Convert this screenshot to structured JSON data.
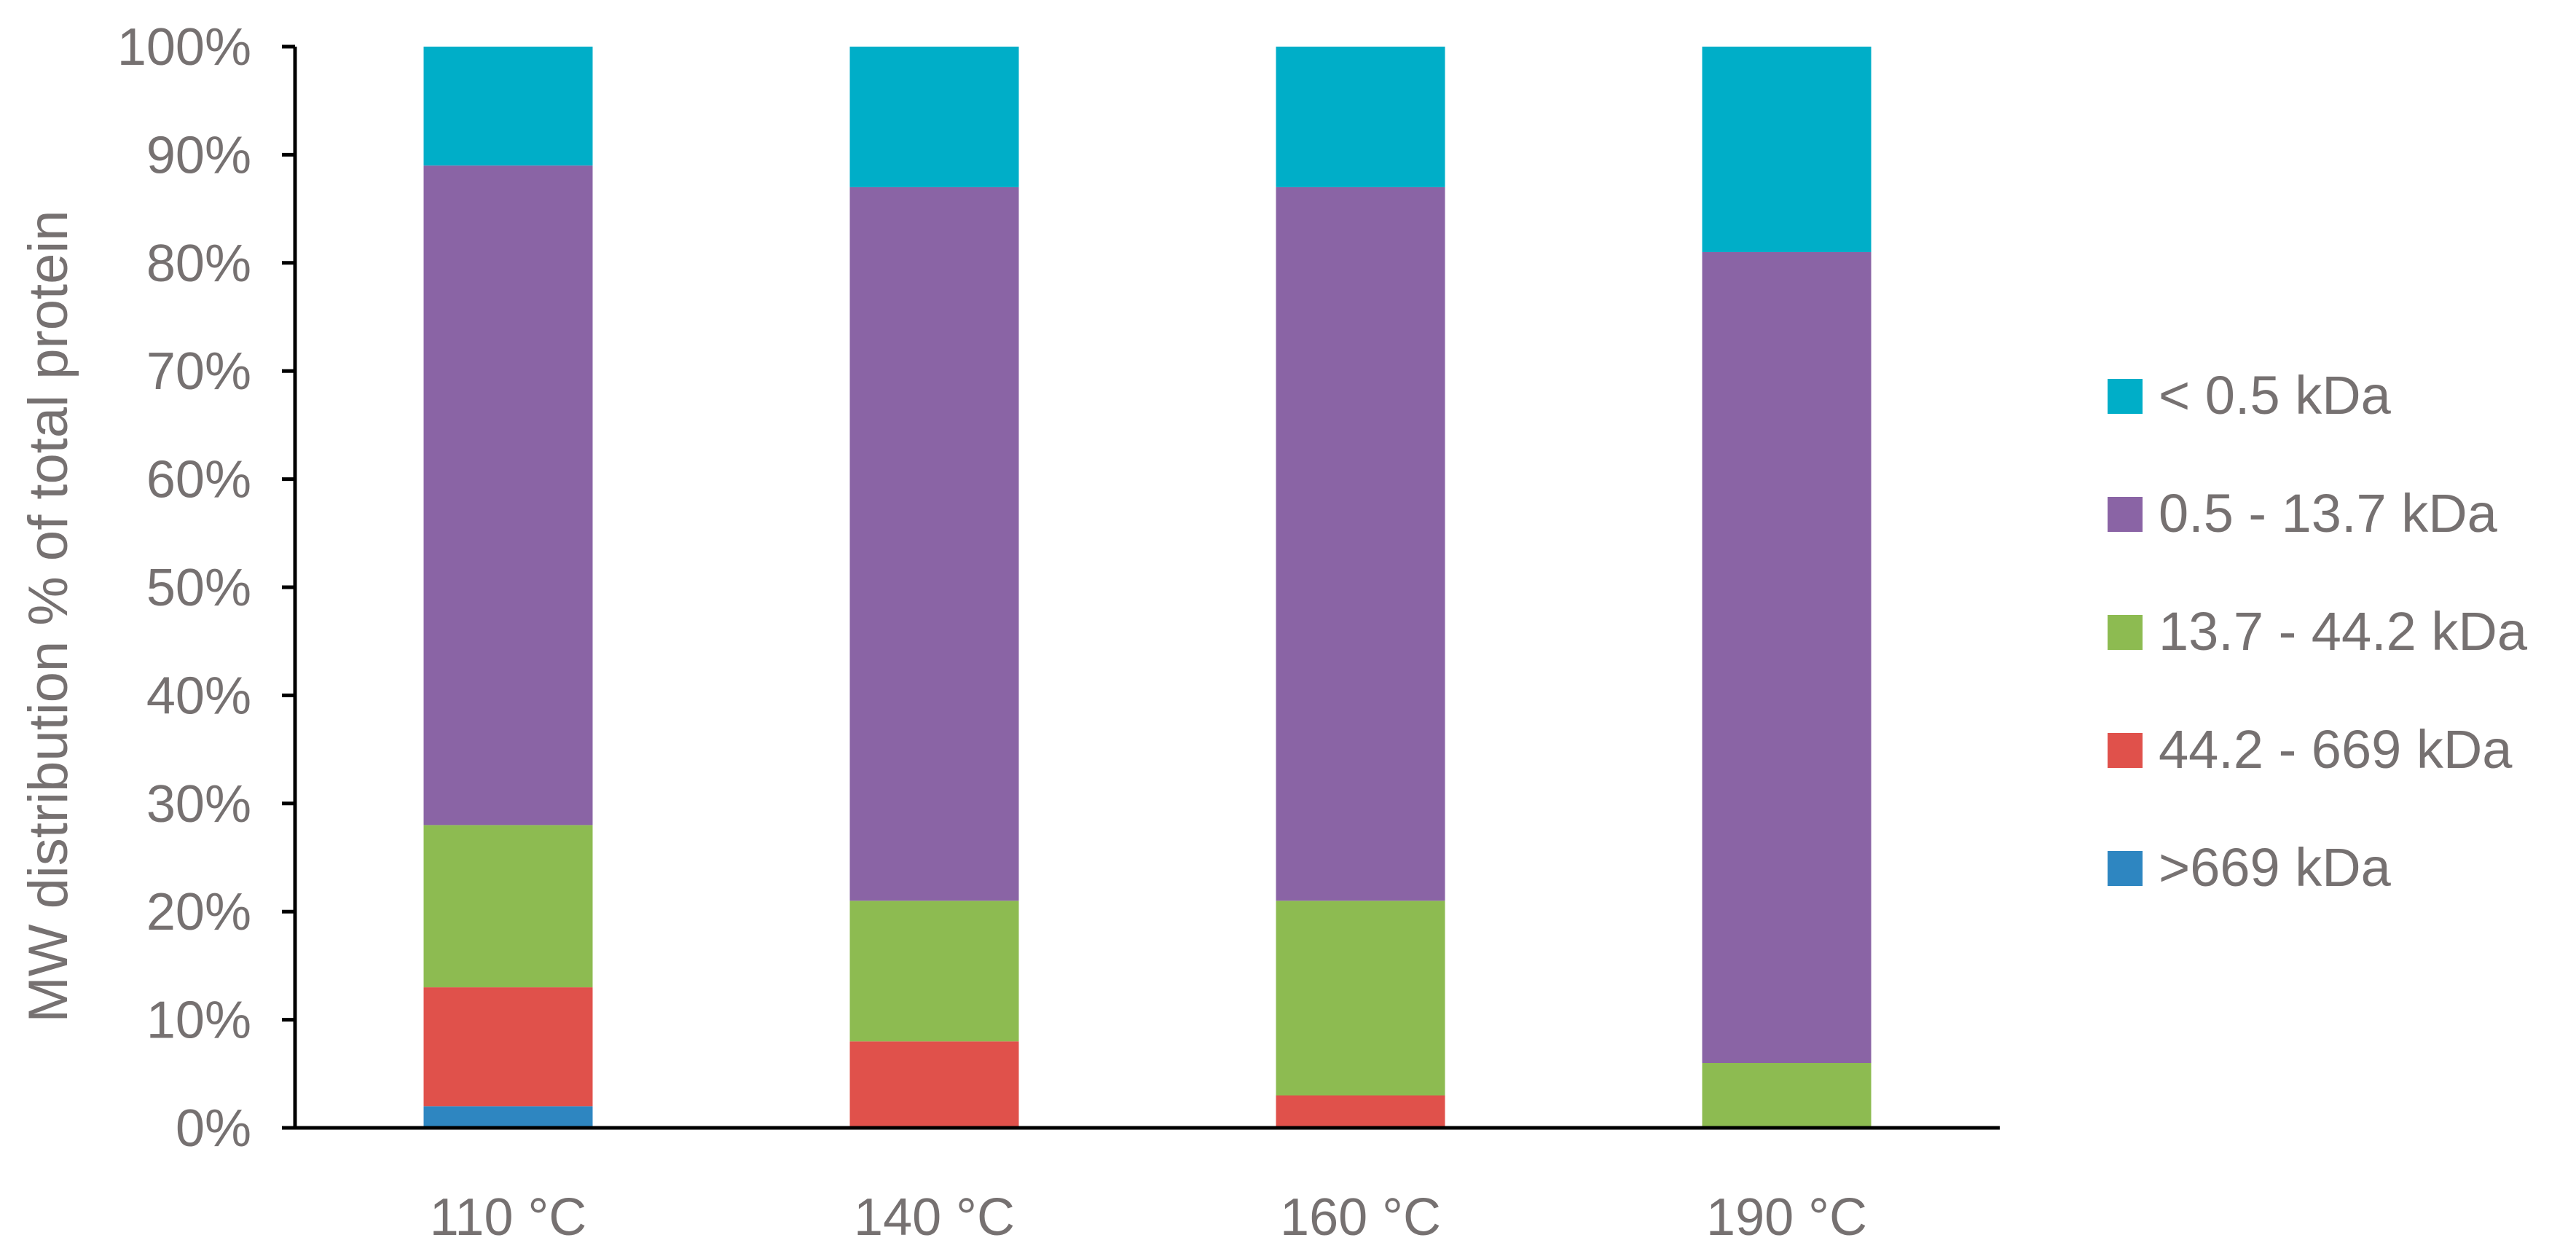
{
  "chart_data": {
    "type": "bar",
    "stacked": true,
    "categories": [
      "110 °C",
      "140 °C",
      "160 °C",
      "190 °C"
    ],
    "ylabel": "MW distribution % of total protein",
    "xlabel": "",
    "ylim": [
      0,
      100
    ],
    "yticks": [
      "0%",
      "10%",
      "20%",
      "30%",
      "40%",
      "50%",
      "60%",
      "70%",
      "80%",
      "90%",
      "100%"
    ],
    "grid": false,
    "legend_position": "right",
    "series": [
      {
        "name": ">669 kDa",
        "color": "#2E86C1",
        "values": [
          2,
          0,
          0,
          0
        ]
      },
      {
        "name": "44.2 - 669 kDa",
        "color": "#E0514B",
        "values": [
          11,
          8,
          3,
          0
        ]
      },
      {
        "name": "13.7 - 44.2 kDa",
        "color": "#8DBB51",
        "values": [
          15,
          13,
          18,
          6
        ]
      },
      {
        "name": "0.5 - 13.7 kDa",
        "color": "#8A64A5",
        "values": [
          61,
          66,
          66,
          75
        ]
      },
      {
        "name": "< 0.5 kDa",
        "color": "#00AEC8",
        "values": [
          11,
          13,
          13,
          19
        ]
      }
    ]
  }
}
